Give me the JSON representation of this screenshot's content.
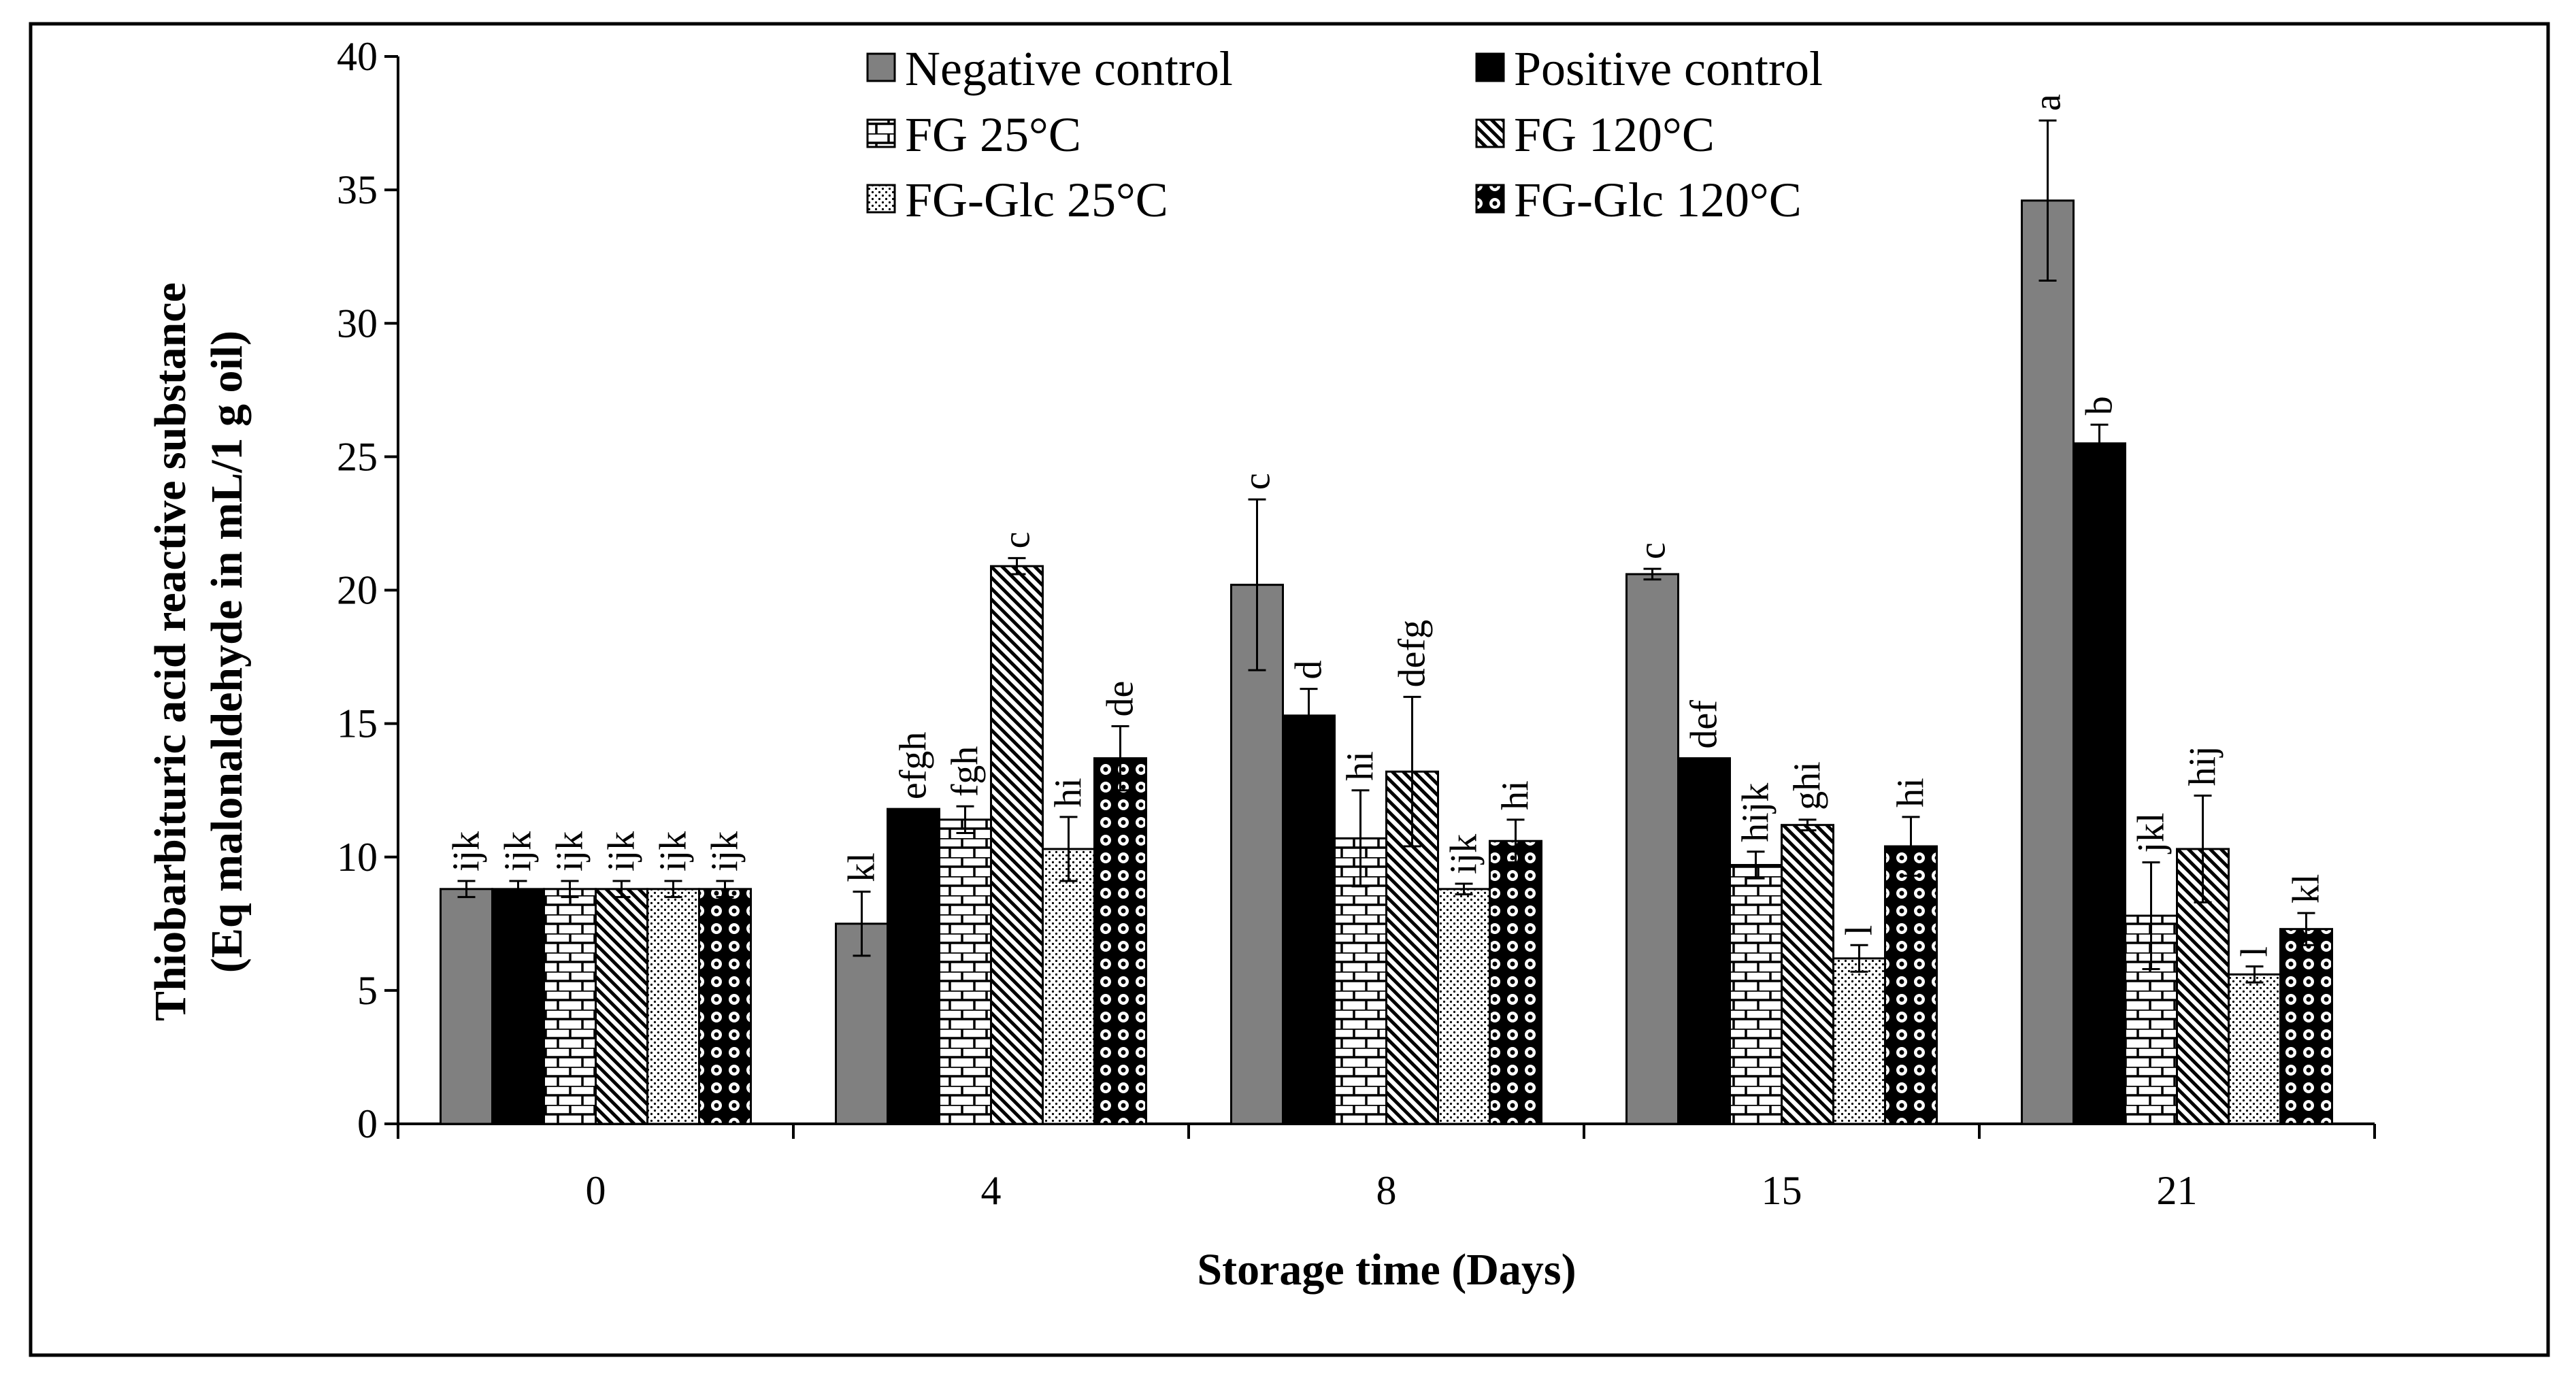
{
  "chart_data": {
    "type": "bar",
    "title": "",
    "xlabel": "Storage time (Days)",
    "ylabel_line1": "Thiobarbituric acid reactive substance",
    "ylabel_line2": "(Eq malonaldehyde in mL/1 g oil)",
    "ylim": [
      0,
      40
    ],
    "yticks": [
      "0",
      "5",
      "10",
      "15",
      "20",
      "25",
      "30",
      "35",
      "40"
    ],
    "categories": [
      "0",
      "4",
      "8",
      "15",
      "21"
    ],
    "legend_position": "top-center",
    "series": [
      {
        "name": "Negative control",
        "pattern": "gray",
        "values": [
          8.8,
          7.5,
          20.2,
          20.6,
          34.6
        ],
        "errors": [
          0.3,
          1.2,
          3.2,
          0.2,
          3.0
        ],
        "labels": [
          "ijk",
          "kl",
          "c",
          "c",
          "a"
        ]
      },
      {
        "name": "Positive control",
        "pattern": "black",
        "values": [
          8.8,
          11.8,
          15.3,
          13.7,
          25.5
        ],
        "errors": [
          0.3,
          0.0,
          1.0,
          0.0,
          0.7
        ],
        "labels": [
          "ijk",
          "efgh",
          "d",
          "def",
          "b"
        ]
      },
      {
        "name": "FG 25°C",
        "pattern": "brick",
        "values": [
          8.8,
          11.4,
          10.7,
          9.7,
          7.8
        ],
        "errors": [
          0.3,
          0.5,
          1.8,
          0.5,
          2.0
        ],
        "labels": [
          "ijk",
          "fgh",
          "hi",
          "hijk",
          "jkl"
        ]
      },
      {
        "name": "FG 120°C",
        "pattern": "diagonal",
        "values": [
          8.8,
          20.9,
          13.2,
          11.2,
          10.3
        ],
        "errors": [
          0.3,
          0.3,
          2.8,
          0.2,
          2.0
        ],
        "labels": [
          "ijk",
          "c",
          "defg",
          "ghi",
          "hij"
        ]
      },
      {
        "name": "FG-Glc 25°C",
        "pattern": "dots",
        "values": [
          8.8,
          10.3,
          8.8,
          6.2,
          5.6
        ],
        "errors": [
          0.3,
          1.2,
          0.2,
          0.5,
          0.3
        ],
        "labels": [
          "ijk",
          "hi",
          "ijk",
          "l",
          "l"
        ]
      },
      {
        "name": "FG-Glc 120°C",
        "pattern": "circles",
        "values": [
          8.8,
          13.7,
          10.6,
          10.4,
          7.3
        ],
        "errors": [
          0.3,
          1.2,
          0.8,
          1.1,
          0.6
        ],
        "labels": [
          "ijk",
          "de",
          "hi",
          "hi",
          "kl"
        ]
      }
    ]
  }
}
